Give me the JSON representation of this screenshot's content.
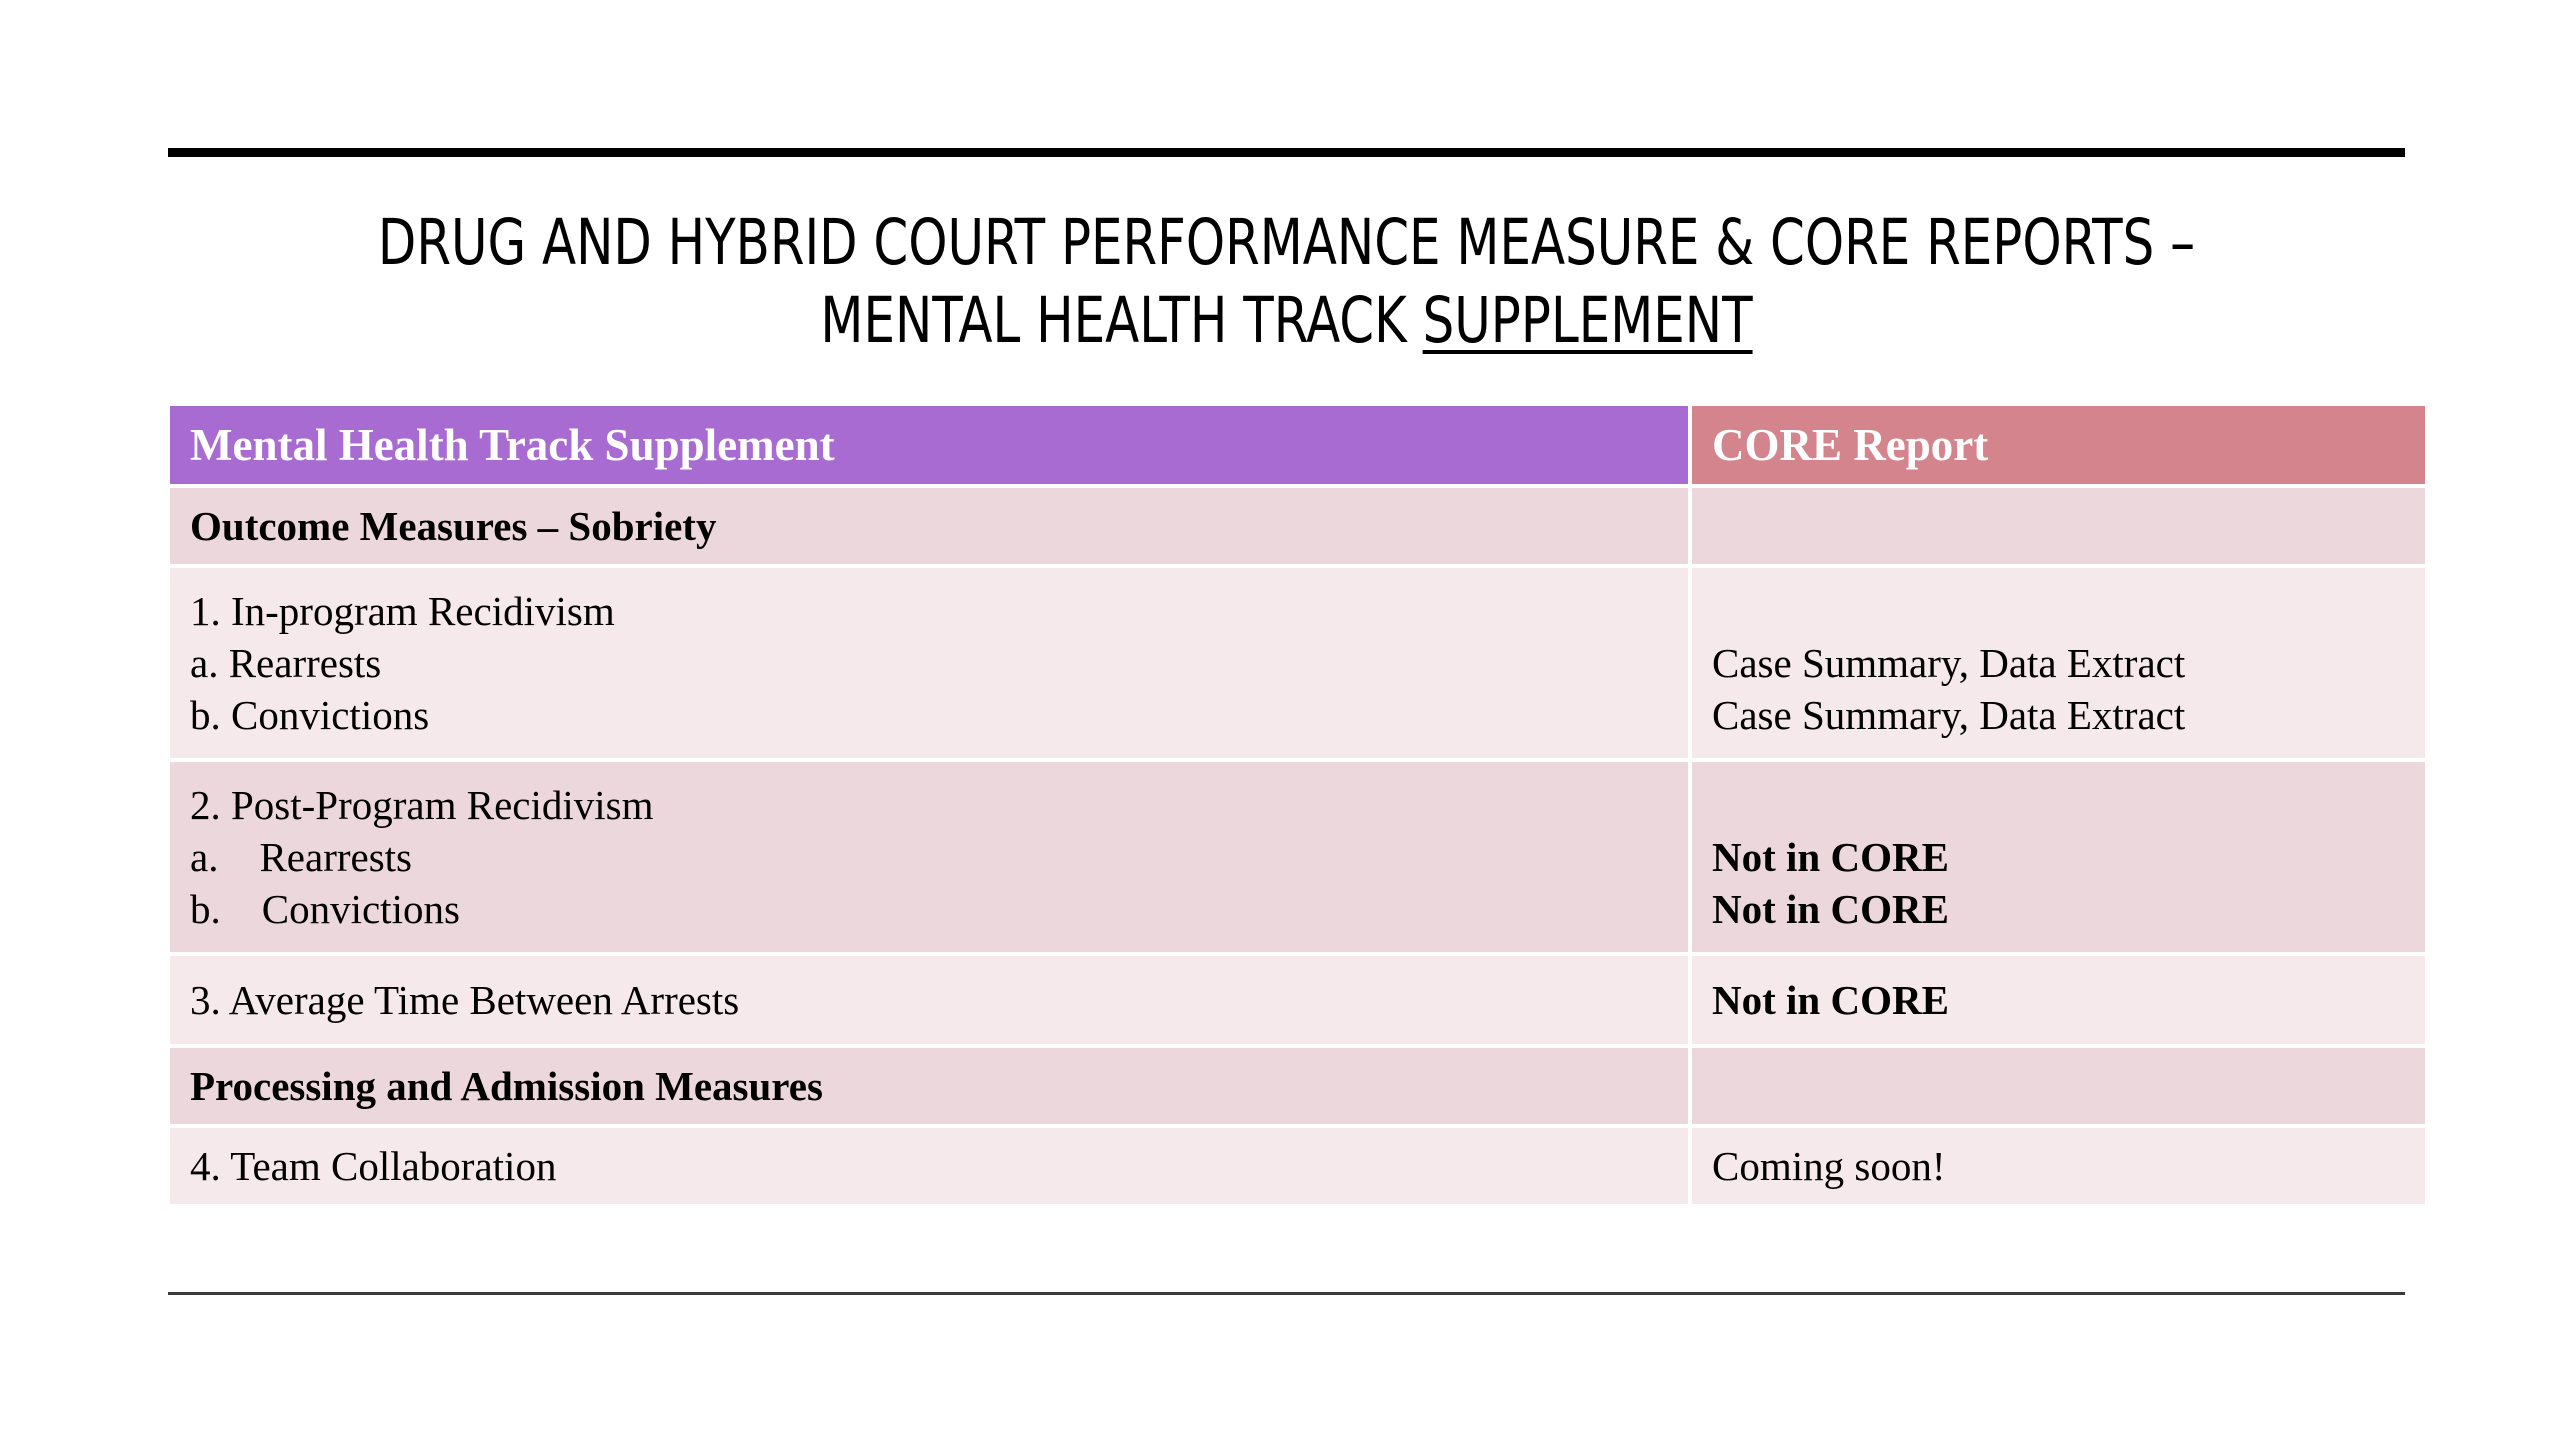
{
  "slide": {
    "title_line1": "DRUG AND HYBRID COURT PERFORMANCE MEASURE & CORE REPORTS –",
    "title_line2_plain": "MENTAL HEALTH TRACK ",
    "title_line2_underlined": "SUPPLEMENT"
  },
  "table": {
    "headers": {
      "left": "Mental Health Track Supplement",
      "right": "CORE Report"
    },
    "rows": [
      {
        "left": [
          "Outcome Measures – Sobriety"
        ],
        "right": [
          ""
        ]
      },
      {
        "left": [
          "1.  In-program Recidivism",
          "a.  Rearrests",
          "b.  Convictions"
        ],
        "right": [
          "",
          "Case Summary, Data Extract",
          "Case Summary, Data Extract"
        ]
      },
      {
        "left": [
          "2.  Post-Program Recidivism",
          "a.    Rearrests",
          "b.    Convictions"
        ],
        "right": [
          "",
          "Not in CORE",
          "Not in CORE"
        ]
      },
      {
        "left": [
          "3. Average Time Between Arrests"
        ],
        "right": [
          "Not in CORE"
        ]
      },
      {
        "left": [
          "Processing and Admission Measures"
        ],
        "right": [
          ""
        ]
      },
      {
        "left": [
          "4. Team Collaboration"
        ],
        "right": [
          "Coming soon!"
        ]
      }
    ]
  },
  "colors": {
    "header_left": "#a86bd1",
    "header_right": "#d4848c",
    "row_dark": "#ecd8dc",
    "row_light": "#f6e9ec"
  }
}
